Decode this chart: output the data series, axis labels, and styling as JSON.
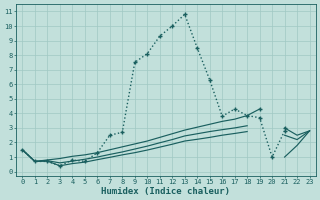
{
  "xlabel": "Humidex (Indice chaleur)",
  "bg_color": "#c2e0db",
  "grid_color": "#a0c8c4",
  "line_color": "#1a5f5f",
  "xlim": [
    -0.5,
    23.5
  ],
  "ylim": [
    -0.3,
    11.5
  ],
  "xticks": [
    0,
    1,
    2,
    3,
    4,
    5,
    6,
    7,
    8,
    9,
    10,
    11,
    12,
    13,
    14,
    15,
    16,
    17,
    18,
    19,
    20,
    21,
    22,
    23
  ],
  "yticks": [
    0,
    1,
    2,
    3,
    4,
    5,
    6,
    7,
    8,
    9,
    10,
    11
  ],
  "main_curve": {
    "segments": [
      {
        "x": [
          0,
          1,
          2,
          3,
          4,
          5,
          6,
          7,
          8,
          9,
          10,
          11,
          12,
          13,
          14,
          15,
          16,
          17,
          18,
          19,
          20,
          21
        ],
        "y": [
          1.5,
          0.7,
          0.7,
          0.4,
          0.8,
          0.7,
          1.3,
          2.5,
          2.7,
          7.5,
          8.1,
          9.3,
          10.0,
          10.8,
          8.5,
          6.3,
          3.8,
          4.3,
          3.85,
          3.7,
          1.0,
          2.8
        ]
      }
    ]
  },
  "upper_solid": {
    "segments": [
      {
        "x": [
          0,
          1,
          2,
          3,
          4,
          5,
          6,
          7,
          8,
          9,
          10,
          11,
          12,
          13,
          14,
          15,
          16,
          17,
          18,
          19
        ],
        "y": [
          1.5,
          0.7,
          0.8,
          0.9,
          1.05,
          1.15,
          1.3,
          1.5,
          1.7,
          1.9,
          2.1,
          2.35,
          2.6,
          2.85,
          3.05,
          3.25,
          3.45,
          3.6,
          3.85,
          4.3
        ]
      },
      {
        "x": [
          21,
          22,
          23
        ],
        "y": [
          3.0,
          2.5,
          2.8
        ]
      }
    ]
  },
  "mid_solid": {
    "segments": [
      {
        "x": [
          0,
          1,
          2,
          3,
          4,
          5,
          6,
          7,
          8,
          9,
          10,
          11,
          12,
          13,
          14,
          15,
          16,
          17,
          18
        ],
        "y": [
          1.5,
          0.7,
          0.75,
          0.6,
          0.72,
          0.85,
          1.0,
          1.18,
          1.35,
          1.55,
          1.75,
          1.98,
          2.2,
          2.45,
          2.6,
          2.75,
          2.88,
          3.0,
          3.15
        ]
      },
      {
        "x": [
          21,
          22,
          23
        ],
        "y": [
          2.5,
          2.2,
          2.8
        ]
      }
    ]
  },
  "lower_solid": {
    "segments": [
      {
        "x": [
          0,
          1,
          2,
          3,
          4,
          5,
          6,
          7,
          8,
          9,
          10,
          11,
          12,
          13,
          14,
          15,
          16,
          17,
          18
        ],
        "y": [
          1.5,
          0.7,
          0.72,
          0.4,
          0.55,
          0.65,
          0.82,
          0.98,
          1.15,
          1.3,
          1.48,
          1.68,
          1.88,
          2.1,
          2.22,
          2.35,
          2.5,
          2.62,
          2.75
        ]
      },
      {
        "x": [
          21,
          22,
          23
        ],
        "y": [
          1.0,
          1.8,
          2.8
        ]
      }
    ]
  }
}
